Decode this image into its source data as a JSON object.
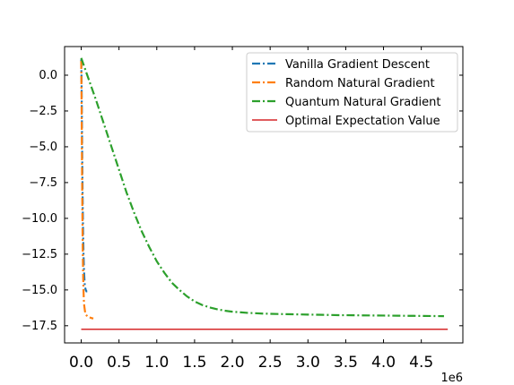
{
  "chart_data": {
    "type": "line",
    "x_multiplier_label": "1e6",
    "xlim": [
      -0.22,
      5.05
    ],
    "ylim": [
      -18.7,
      2.0
    ],
    "x_ticks": [
      {
        "value": 0.0,
        "label": "0.0"
      },
      {
        "value": 0.5,
        "label": "0.5"
      },
      {
        "value": 1.0,
        "label": "1.0"
      },
      {
        "value": 1.5,
        "label": "1.5"
      },
      {
        "value": 2.0,
        "label": "2.0"
      },
      {
        "value": 2.5,
        "label": "2.5"
      },
      {
        "value": 3.0,
        "label": "3.0"
      },
      {
        "value": 3.5,
        "label": "3.5"
      },
      {
        "value": 4.0,
        "label": "4.0"
      },
      {
        "value": 4.5,
        "label": "4.5"
      }
    ],
    "y_ticks": [
      {
        "value": 0.0,
        "label": "0.0"
      },
      {
        "value": -2.5,
        "label": "−2.5"
      },
      {
        "value": -5.0,
        "label": "−5.0"
      },
      {
        "value": -7.5,
        "label": "−7.5"
      },
      {
        "value": -10.0,
        "label": "−10.0"
      },
      {
        "value": -12.5,
        "label": "−12.5"
      },
      {
        "value": -15.0,
        "label": "−15.0"
      },
      {
        "value": -17.5,
        "label": "−17.5"
      }
    ],
    "legend_position": "upper-right",
    "series": [
      {
        "name": "Vanilla Gradient Descent",
        "color": "#1f77b4",
        "style": "dashdot",
        "x": [
          0.0,
          0.005,
          0.01,
          0.015,
          0.02,
          0.025,
          0.03,
          0.035,
          0.04,
          0.045,
          0.05,
          0.06,
          0.07,
          0.08
        ],
        "y": [
          1.1,
          -0.5,
          -3.5,
          -6.5,
          -9.0,
          -11.0,
          -12.3,
          -13.3,
          -14.0,
          -14.5,
          -14.8,
          -15.0,
          -15.1,
          -15.1
        ]
      },
      {
        "name": "Random Natural Gradient",
        "color": "#ff7f0e",
        "style": "dashdot",
        "x": [
          0.0,
          0.005,
          0.01,
          0.015,
          0.02,
          0.025,
          0.03,
          0.035,
          0.04,
          0.05,
          0.06,
          0.08,
          0.1,
          0.13,
          0.16
        ],
        "y": [
          1.0,
          -2.0,
          -6.0,
          -9.5,
          -12.0,
          -13.8,
          -15.0,
          -15.7,
          -16.1,
          -16.5,
          -16.7,
          -16.85,
          -16.9,
          -16.95,
          -17.0
        ]
      },
      {
        "name": "Quantum Natural Gradient",
        "color": "#2ca02c",
        "style": "dashdot",
        "x": [
          0.0,
          0.1,
          0.2,
          0.3,
          0.4,
          0.5,
          0.6,
          0.7,
          0.8,
          0.9,
          1.0,
          1.1,
          1.2,
          1.3,
          1.4,
          1.5,
          1.6,
          1.7,
          1.8,
          1.9,
          2.0,
          2.2,
          2.4,
          2.6,
          2.8,
          3.0,
          3.2,
          3.4,
          3.6,
          3.8,
          4.0,
          4.2,
          4.4,
          4.6,
          4.8
        ],
        "y": [
          1.2,
          -0.3,
          -1.8,
          -3.4,
          -5.0,
          -6.6,
          -8.2,
          -9.6,
          -10.9,
          -12.0,
          -13.0,
          -13.8,
          -14.5,
          -15.0,
          -15.45,
          -15.8,
          -16.05,
          -16.22,
          -16.35,
          -16.45,
          -16.52,
          -16.6,
          -16.65,
          -16.68,
          -16.7,
          -16.72,
          -16.74,
          -16.76,
          -16.77,
          -16.78,
          -16.79,
          -16.8,
          -16.81,
          -16.82,
          -16.83
        ]
      },
      {
        "name": "Optimal Expectation Value",
        "color": "#d62728",
        "style": "solid",
        "x": [
          0.0,
          4.85
        ],
        "y": [
          -17.75,
          -17.75
        ]
      }
    ]
  }
}
